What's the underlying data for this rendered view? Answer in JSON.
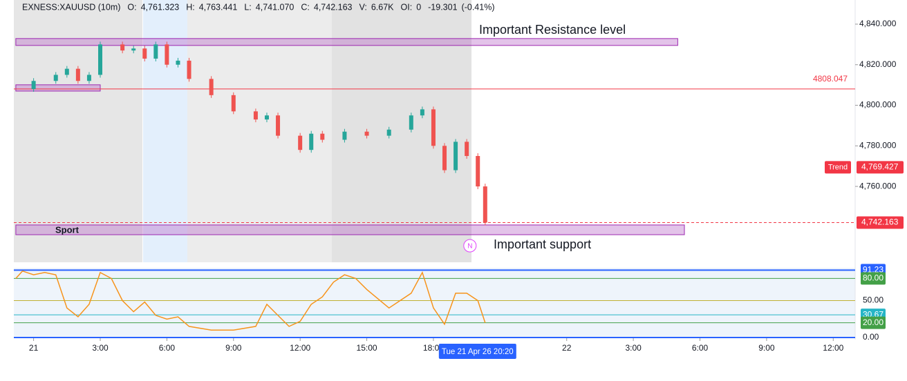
{
  "header": {
    "symbol": "EXNESS:XAUUSD (10m)",
    "fields": [
      {
        "key": "O:",
        "value": "4,761.323"
      },
      {
        "key": "H:",
        "value": "4,763.441"
      },
      {
        "key": "L:",
        "value": "4,741.070"
      },
      {
        "key": "C:",
        "value": "4,742.163"
      },
      {
        "key": "V:",
        "value": "6.67K"
      },
      {
        "key": "OI:",
        "value": "0"
      }
    ],
    "change": "-19.301",
    "change_pct": "(-0.41%)"
  },
  "chart_data": [
    {
      "type": "candlestick",
      "x": [
        -0.8,
        0,
        1,
        1.5,
        2,
        2.5,
        3,
        4,
        4.5,
        5,
        5.5,
        6,
        6.5,
        7,
        8,
        9,
        10,
        10.5,
        11,
        12,
        12.5,
        13,
        14,
        15,
        16,
        17,
        17.5,
        18,
        18.5,
        19,
        19.5,
        20,
        20.33
      ],
      "values": [
        4808,
        4812,
        4815,
        4818,
        4812,
        4815,
        4830,
        4827,
        4828,
        4823,
        4830,
        4820,
        4822,
        4813,
        4805,
        4797,
        4793,
        4795,
        4785,
        4778,
        4786,
        4783,
        4787,
        4785,
        4788,
        4795,
        4798,
        4780,
        4768,
        4782,
        4775,
        4760,
        4742.163
      ],
      "up_color": "#26a69a",
      "down_color": "#ef5350",
      "ylim": [
        4722.6,
        4851.9
      ],
      "yticks": [
        {
          "value": 4760,
          "label": "4,760.000"
        },
        {
          "value": 4780,
          "label": "4,780.000"
        },
        {
          "value": 4800,
          "label": "4,800.000"
        },
        {
          "value": 4820,
          "label": "4,820.000"
        },
        {
          "value": 4840,
          "label": "4,840.000"
        }
      ],
      "xticks": [
        {
          "value": 0,
          "label": "21"
        },
        {
          "value": 3,
          "label": "3:00"
        },
        {
          "value": 6,
          "label": "6:00"
        },
        {
          "value": 9,
          "label": "9:00"
        },
        {
          "value": 12,
          "label": "12:00"
        },
        {
          "value": 15,
          "label": "15:00"
        },
        {
          "value": 18,
          "label": "18:00"
        },
        {
          "value": 24,
          "label": "22"
        },
        {
          "value": 27,
          "label": "3:00"
        },
        {
          "value": 30,
          "label": "6:00"
        },
        {
          "value": 33,
          "label": "9:00"
        },
        {
          "value": 36,
          "label": "12:00"
        }
      ],
      "levels": [
        {
          "value": 4808.047,
          "label": "4808.047",
          "color": "#f23645"
        }
      ],
      "last_price": {
        "value": 4742.163,
        "label": "4,742.163",
        "color": "#f23645"
      },
      "trend": {
        "name": "Trend",
        "value": 4769.427,
        "label": "4,769.427",
        "color": "#f23645"
      },
      "zones": [
        {
          "label": "Important Resistance level",
          "range": [
            4829.5,
            4832.9
          ],
          "hours": [
            -0.8,
            29
          ]
        },
        {
          "label": "Important support",
          "tag": "Sport",
          "range": [
            4736.2,
            4741
          ],
          "hours": [
            -0.8,
            29.3
          ]
        },
        {
          "range": [
            4807,
            4810.1
          ],
          "hours": [
            -0.8,
            3
          ]
        }
      ],
      "signal": "N",
      "cursor_time": "Tue 21 Apr 26 20:20"
    },
    {
      "type": "line",
      "x": [
        -0.8,
        -0.5,
        0,
        0.5,
        1,
        1.5,
        2,
        2.5,
        3,
        3.5,
        4,
        4.5,
        5,
        5.5,
        6,
        6.5,
        7,
        8,
        9,
        10,
        10.5,
        11,
        11.5,
        12,
        12.5,
        13,
        13.5,
        14,
        14.5,
        15,
        16,
        17,
        17.5,
        18,
        18.5,
        19,
        19.5,
        20,
        20.33
      ],
      "values": [
        80,
        90,
        85,
        88,
        85,
        40,
        28,
        45,
        88,
        80,
        50,
        35,
        48,
        30,
        25,
        28,
        15,
        10,
        10,
        15,
        45,
        30,
        15,
        22,
        45,
        55,
        75,
        85,
        80,
        65,
        40,
        60,
        88,
        40,
        18,
        60,
        60,
        50,
        20
      ],
      "color": "#f7931a",
      "ylim": [
        0,
        100
      ],
      "levels": [
        {
          "value": 91.23,
          "label": "91.23",
          "color": "#2962ff"
        },
        {
          "value": 80,
          "label": "80.00",
          "color": "#43a047"
        },
        {
          "value": 50,
          "label": "50.00",
          "color": "#c0b030"
        },
        {
          "value": 30.67,
          "label": "30.67",
          "color": "#26b5c6"
        },
        {
          "value": 20,
          "label": "20.00",
          "color": "#43a047"
        },
        {
          "value": 0,
          "label": "0.00",
          "color": "#2962ff"
        }
      ]
    }
  ]
}
